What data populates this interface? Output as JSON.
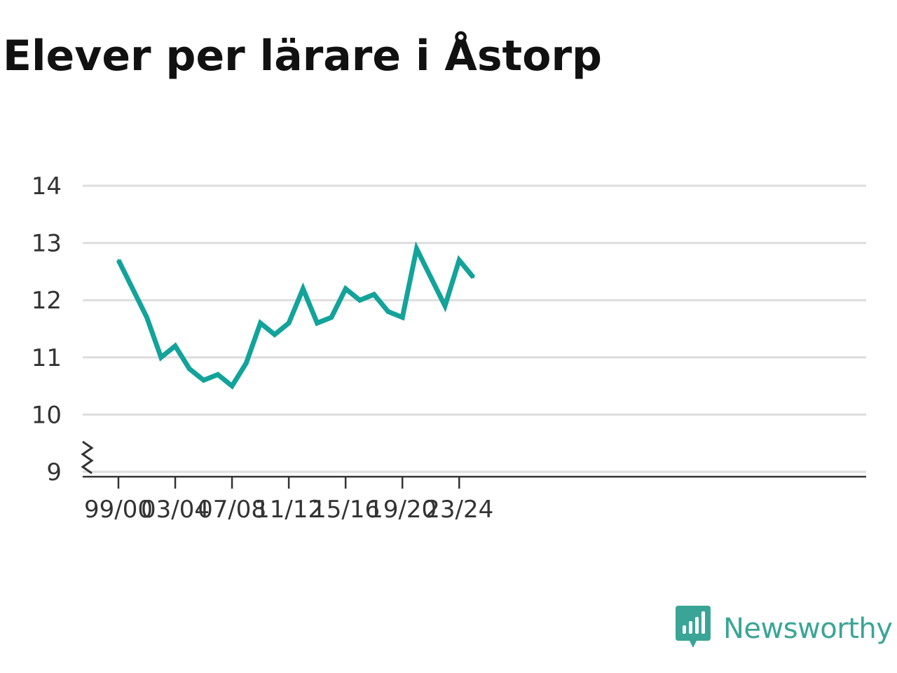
{
  "header": {
    "title": "Elever per lärare i Åstorp"
  },
  "brand": {
    "name": "Newsworthy"
  },
  "colors": {
    "line": "#12a39a",
    "grid": "#dddddd",
    "axis": "#333333",
    "brand": "#3aa596"
  },
  "chart_data": {
    "type": "line",
    "title": "Elever per lärare i Åstorp",
    "xlabel": "",
    "ylabel": "",
    "ylim": [
      9,
      14
    ],
    "y_axis_break": true,
    "grid": true,
    "x": [
      "99/00",
      "00/01",
      "01/02",
      "02/03",
      "03/04",
      "04/05",
      "05/06",
      "06/07",
      "07/08",
      "08/09",
      "09/10",
      "10/11",
      "11/12",
      "12/13",
      "13/14",
      "14/15",
      "15/16",
      "16/17",
      "17/18",
      "18/19",
      "19/20",
      "20/21",
      "21/22",
      "22/23",
      "23/24",
      "24/25"
    ],
    "x_tick_labels": [
      "99/00",
      "03/04",
      "07/08",
      "11/12",
      "15/16",
      "19/20",
      "23/24"
    ],
    "y_tick_labels": [
      "14",
      "13",
      "12",
      "11",
      "10",
      "9"
    ],
    "series": [
      {
        "values": [
          12.7,
          12.2,
          11.7,
          11.0,
          11.2,
          10.8,
          10.6,
          10.7,
          10.5,
          10.9,
          11.6,
          11.4,
          11.6,
          12.2,
          11.6,
          11.7,
          12.2,
          12.0,
          12.1,
          11.8,
          11.7,
          12.9,
          12.4,
          11.9,
          12.7,
          12.4
        ]
      }
    ]
  }
}
